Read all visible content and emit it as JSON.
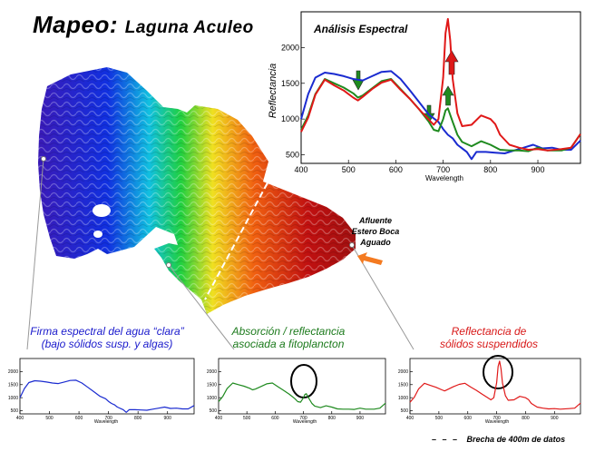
{
  "header": {
    "title_main": "Mapeo:",
    "title_sub": "Laguna Aculeo"
  },
  "map": {
    "annotation": [
      "Afluente",
      "Estero Boca",
      "Aguado"
    ],
    "arrow_color": "#f47a20"
  },
  "captions": {
    "clear": [
      "Firma espectral del agua “clara”",
      "(bajo sólidos susp. y algas)"
    ],
    "phyto": [
      "Absorción / reflectancia",
      "asociada a fitoplancton"
    ],
    "solids": [
      "Reflectancia de",
      "sólidos suspendidos"
    ]
  },
  "footnote": "Brecha de 400m de datos",
  "colors": {
    "blue": "#1a2bd0",
    "green": "#1f8a1f",
    "red": "#e01818",
    "caption_blue": "#1a1acc",
    "caption_green": "#1c7a1c",
    "caption_red": "#d81818"
  },
  "chart_data": [
    {
      "type": "line",
      "title": "Análisis Espectral",
      "xlabel": "Wavelength",
      "ylabel": "Reflectancia",
      "xlim": [
        400,
        990
      ],
      "ylim": [
        380,
        2500
      ],
      "xticks": [
        400,
        500,
        600,
        700,
        800,
        900
      ],
      "yticks": [
        500,
        1000,
        1500,
        2000
      ],
      "series": [
        {
          "color": "blue",
          "x": [
            400,
            415,
            430,
            450,
            470,
            490,
            510,
            530,
            550,
            570,
            590,
            610,
            630,
            650,
            670,
            690,
            700,
            710,
            720,
            730,
            750,
            760,
            770,
            790,
            810,
            830,
            850,
            870,
            890,
            910,
            930,
            950,
            970,
            990
          ],
          "y": [
            1000,
            1350,
            1580,
            1650,
            1630,
            1600,
            1560,
            1540,
            1600,
            1660,
            1670,
            1560,
            1400,
            1230,
            1060,
            960,
            860,
            780,
            730,
            640,
            540,
            440,
            540,
            540,
            530,
            520,
            560,
            600,
            640,
            590,
            600,
            570,
            570,
            700
          ]
        },
        {
          "color": "green",
          "x": [
            400,
            415,
            430,
            450,
            470,
            490,
            510,
            520,
            530,
            550,
            570,
            590,
            610,
            630,
            650,
            670,
            680,
            690,
            700,
            705,
            710,
            720,
            730,
            740,
            760,
            780,
            800,
            820,
            840,
            860,
            880,
            900,
            920,
            950,
            970,
            990
          ],
          "y": [
            850,
            1050,
            1350,
            1560,
            1500,
            1440,
            1360,
            1300,
            1330,
            1430,
            1530,
            1560,
            1420,
            1280,
            1130,
            960,
            850,
            830,
            1000,
            1120,
            1150,
            960,
            780,
            680,
            620,
            690,
            640,
            570,
            560,
            560,
            550,
            600,
            560,
            560,
            600,
            790
          ]
        },
        {
          "color": "red",
          "x": [
            400,
            415,
            430,
            450,
            470,
            490,
            510,
            520,
            530,
            550,
            570,
            590,
            610,
            630,
            650,
            670,
            680,
            690,
            700,
            705,
            710,
            715,
            720,
            730,
            740,
            760,
            780,
            800,
            810,
            820,
            840,
            860,
            880,
            900,
            920,
            950,
            970,
            990
          ],
          "y": [
            820,
            1020,
            1340,
            1550,
            1470,
            1400,
            1300,
            1260,
            1310,
            1420,
            1510,
            1550,
            1410,
            1280,
            1130,
            990,
            920,
            1000,
            1580,
            2200,
            2400,
            2100,
            1560,
            1080,
            900,
            920,
            1050,
            1000,
            930,
            780,
            640,
            600,
            570,
            580,
            560,
            580,
            600,
            790
          ]
        }
      ]
    },
    {
      "type": "line",
      "xlabel": "Wavelength",
      "xlim": [
        400,
        990
      ],
      "ylim": [
        380,
        2500
      ],
      "xticks": [
        400,
        500,
        600,
        700,
        800,
        900
      ],
      "yticks": [
        500,
        1000,
        1500,
        2000
      ],
      "series": [
        {
          "color": "blue",
          "x": [
            400,
            415,
            430,
            450,
            470,
            490,
            510,
            530,
            550,
            570,
            590,
            610,
            630,
            650,
            670,
            690,
            700,
            710,
            720,
            730,
            750,
            760,
            770,
            790,
            810,
            830,
            850,
            870,
            890,
            910,
            930,
            950,
            970,
            990
          ],
          "y": [
            1000,
            1350,
            1580,
            1650,
            1630,
            1600,
            1560,
            1540,
            1600,
            1660,
            1670,
            1560,
            1400,
            1230,
            1060,
            960,
            860,
            780,
            730,
            640,
            540,
            440,
            540,
            540,
            530,
            520,
            560,
            600,
            640,
            590,
            600,
            570,
            570,
            700
          ]
        }
      ]
    },
    {
      "type": "line",
      "xlabel": "Wavelength",
      "xlim": [
        400,
        990
      ],
      "ylim": [
        380,
        2500
      ],
      "xticks": [
        400,
        500,
        600,
        700,
        800,
        900
      ],
      "yticks": [
        500,
        1000,
        1500,
        2000
      ],
      "series": [
        {
          "color": "green",
          "x": [
            400,
            415,
            430,
            450,
            470,
            490,
            510,
            520,
            530,
            550,
            570,
            590,
            610,
            630,
            650,
            670,
            680,
            690,
            700,
            705,
            710,
            720,
            730,
            740,
            760,
            780,
            800,
            820,
            840,
            860,
            880,
            900,
            920,
            950,
            970,
            990
          ],
          "y": [
            850,
            1050,
            1350,
            1560,
            1500,
            1440,
            1360,
            1300,
            1330,
            1430,
            1530,
            1560,
            1420,
            1280,
            1130,
            960,
            850,
            830,
            1000,
            1120,
            1150,
            960,
            780,
            680,
            620,
            690,
            640,
            570,
            560,
            560,
            550,
            600,
            560,
            560,
            600,
            790
          ]
        }
      ]
    },
    {
      "type": "line",
      "xlabel": "Wavelength",
      "xlim": [
        400,
        990
      ],
      "ylim": [
        380,
        2500
      ],
      "xticks": [
        400,
        500,
        600,
        700,
        800,
        900
      ],
      "yticks": [
        500,
        1000,
        1500,
        2000
      ],
      "series": [
        {
          "color": "red",
          "x": [
            400,
            415,
            430,
            450,
            470,
            490,
            510,
            520,
            530,
            550,
            570,
            590,
            610,
            630,
            650,
            670,
            680,
            690,
            700,
            705,
            710,
            715,
            720,
            730,
            740,
            760,
            780,
            800,
            810,
            820,
            840,
            860,
            880,
            900,
            920,
            950,
            970,
            990
          ],
          "y": [
            820,
            1020,
            1340,
            1550,
            1470,
            1400,
            1300,
            1260,
            1310,
            1420,
            1510,
            1550,
            1410,
            1280,
            1130,
            990,
            920,
            1000,
            1580,
            2200,
            2400,
            2100,
            1560,
            1080,
            900,
            920,
            1050,
            1000,
            930,
            780,
            640,
            600,
            570,
            580,
            560,
            580,
            600,
            790
          ]
        }
      ]
    }
  ]
}
